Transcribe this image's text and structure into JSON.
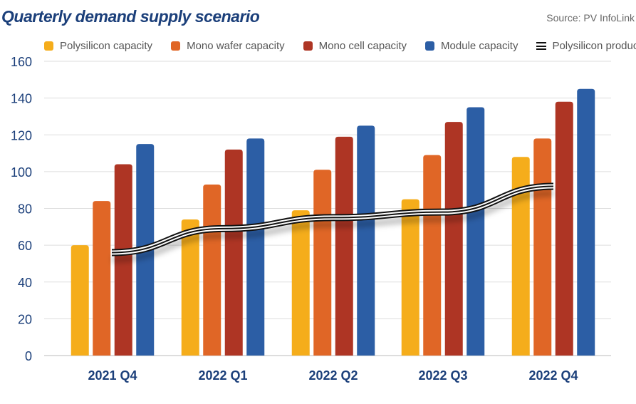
{
  "chart_data": {
    "type": "bar",
    "title": "Quarterly demand supply scenario",
    "source": "Source: PV InfoLink",
    "categories": [
      "2021 Q4",
      "2022 Q1",
      "2022 Q2",
      "2022 Q3",
      "2022 Q4"
    ],
    "series": [
      {
        "name": "Polysilicon capacity",
        "type": "bar",
        "color": "#f5ad1b",
        "values": [
          60,
          74,
          79,
          85,
          108
        ]
      },
      {
        "name": "Mono wafer capacity",
        "type": "bar",
        "color": "#e06626",
        "values": [
          84,
          93,
          101,
          109,
          118
        ]
      },
      {
        "name": "Mono cell capacity",
        "type": "bar",
        "color": "#ae3524",
        "values": [
          104,
          112,
          119,
          127,
          138
        ]
      },
      {
        "name": "Module capacity",
        "type": "bar",
        "color": "#2c5ea5",
        "values": [
          115,
          118,
          125,
          135,
          145
        ]
      },
      {
        "name": "Polysilicon production",
        "type": "line",
        "color": "#111111",
        "values": [
          56,
          69,
          75,
          78,
          92
        ]
      }
    ],
    "ylim": [
      0,
      160
    ],
    "yticks": [
      "0",
      "20",
      "40",
      "60",
      "80",
      "100",
      "120",
      "140",
      "160"
    ],
    "grid": true,
    "legend_position": "top"
  }
}
